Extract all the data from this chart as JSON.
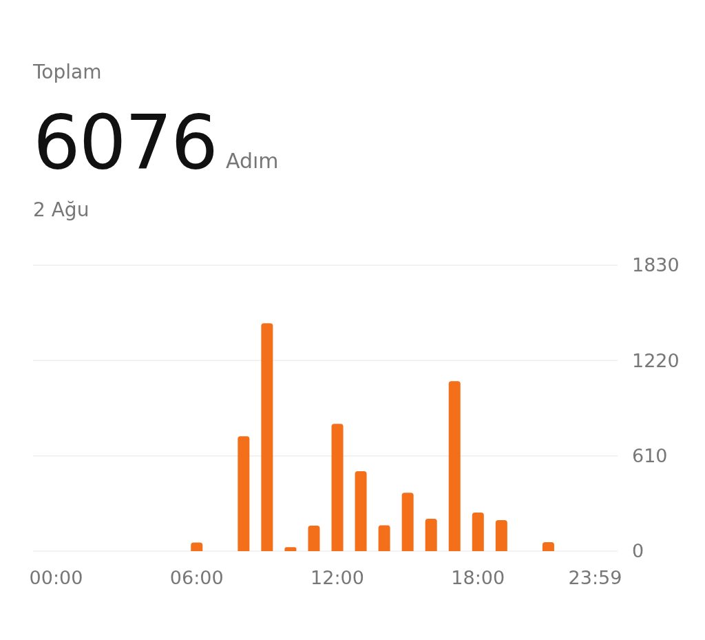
{
  "chart_data": {
    "type": "bar",
    "title": "Toplam",
    "subtitle": "2 Ağu",
    "annotations": [
      "6076",
      "Adım"
    ],
    "categories": [
      "00:00",
      null,
      null,
      null,
      null,
      null,
      "06:00",
      null,
      null,
      null,
      null,
      null,
      "12:00",
      null,
      null,
      null,
      null,
      null,
      "18:00",
      null,
      null,
      null,
      null,
      "23:59"
    ],
    "values": [
      0,
      0,
      0,
      0,
      0,
      0,
      55,
      0,
      735,
      1458,
      25,
      163,
      815,
      511,
      165,
      374,
      207,
      1088,
      247,
      198,
      0,
      57,
      0,
      0
    ],
    "color": "#f36f1a",
    "ylim": [
      0,
      1830
    ],
    "yticks": [
      0,
      610,
      1220,
      1830
    ],
    "grid": "y"
  }
}
